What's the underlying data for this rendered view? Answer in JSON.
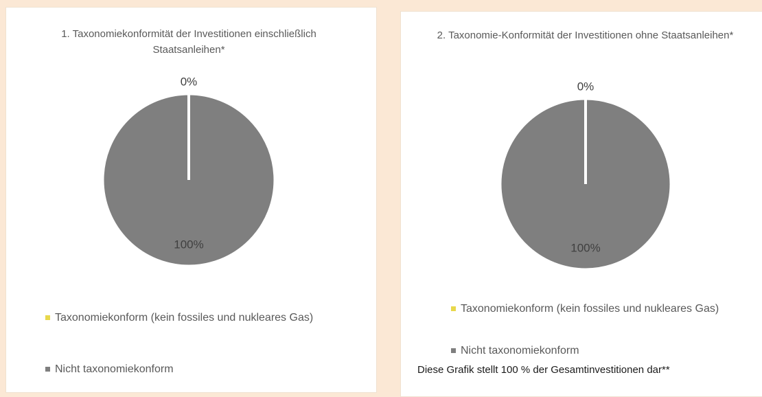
{
  "chart_data": [
    {
      "type": "pie",
      "title": "1. Taxonomiekonformität der Investitionen einschließlich Staatsanleihen*",
      "categories": [
        "Taxonomiekonform (kein fossiles und nukleares Gas)",
        "Nicht taxonomiekonform"
      ],
      "values": [
        0,
        100
      ],
      "value_labels": [
        "0%",
        "100%"
      ],
      "colors": [
        "#e8d84c",
        "#7f7f7f"
      ]
    },
    {
      "type": "pie",
      "title": "2. Taxonomie-Konformität der Investitionen ohne Staatsanleihen*",
      "categories": [
        "Taxonomiekonform (kein fossiles und nukleares Gas)",
        "Nicht taxonomiekonform"
      ],
      "values": [
        0,
        100
      ],
      "value_labels": [
        "0%",
        "100%"
      ],
      "colors": [
        "#e8d84c",
        "#7f7f7f"
      ],
      "footnote": "Diese Grafik stellt 100 % der Gesamtinvestitionen dar**"
    }
  ]
}
